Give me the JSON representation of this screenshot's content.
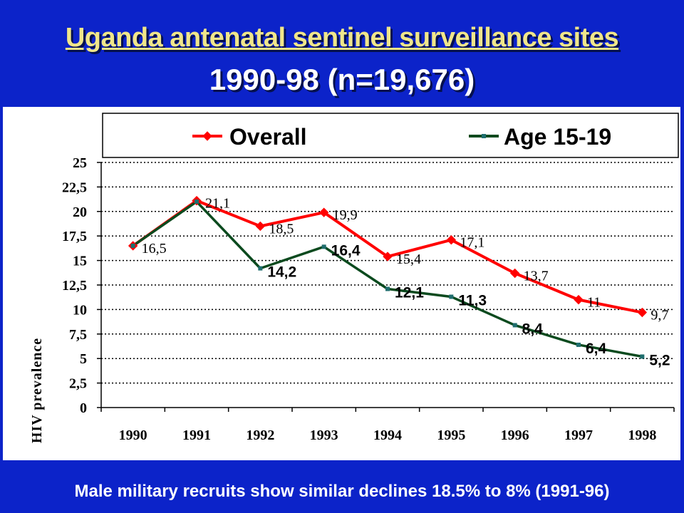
{
  "title": "Uganda antenatal sentinel surveillance sites",
  "subtitle": "1990-98 (n=19,676)",
  "footnote": "Male military recruits show similar declines 18.5% to 8% (1991-96)",
  "colors": {
    "background": "#0c23c9",
    "title": "#f0e68a",
    "overall": "#ff0000",
    "age": "#0b4a1e"
  },
  "chart_data": {
    "type": "line",
    "x": [
      "1990",
      "1991",
      "1992",
      "1993",
      "1994",
      "1995",
      "1996",
      "1997",
      "1998"
    ],
    "series": [
      {
        "name": "Overall",
        "values": [
          16.5,
          21.1,
          18.5,
          19.9,
          15.4,
          17.1,
          13.7,
          11,
          9.7
        ],
        "labels": [
          "16,5",
          "21,1",
          "18,5",
          "19,9",
          "15,4",
          "17,1",
          "13,7",
          "11",
          "9,7"
        ],
        "color": "#ff0000",
        "marker": "diamond"
      },
      {
        "name": "Age 15-19",
        "values": [
          16.5,
          21.0,
          14.2,
          16.4,
          12.1,
          11.3,
          8.4,
          6.4,
          5.2
        ],
        "labels": [
          "",
          "",
          "14,2",
          "16,4",
          "12,1",
          "11,3",
          "8,4",
          "6,4",
          "5,2"
        ],
        "color": "#0b4a1e",
        "marker": "square"
      }
    ],
    "ylabel": "HIV prevalence",
    "xlabel": "",
    "ylim": [
      0,
      25
    ],
    "yticks": [
      "0",
      "2,5",
      "5",
      "7,5",
      "10",
      "12,5",
      "15",
      "17,5",
      "20",
      "22,5",
      "25"
    ],
    "grid": "horizontal dotted",
    "legend": "top"
  }
}
